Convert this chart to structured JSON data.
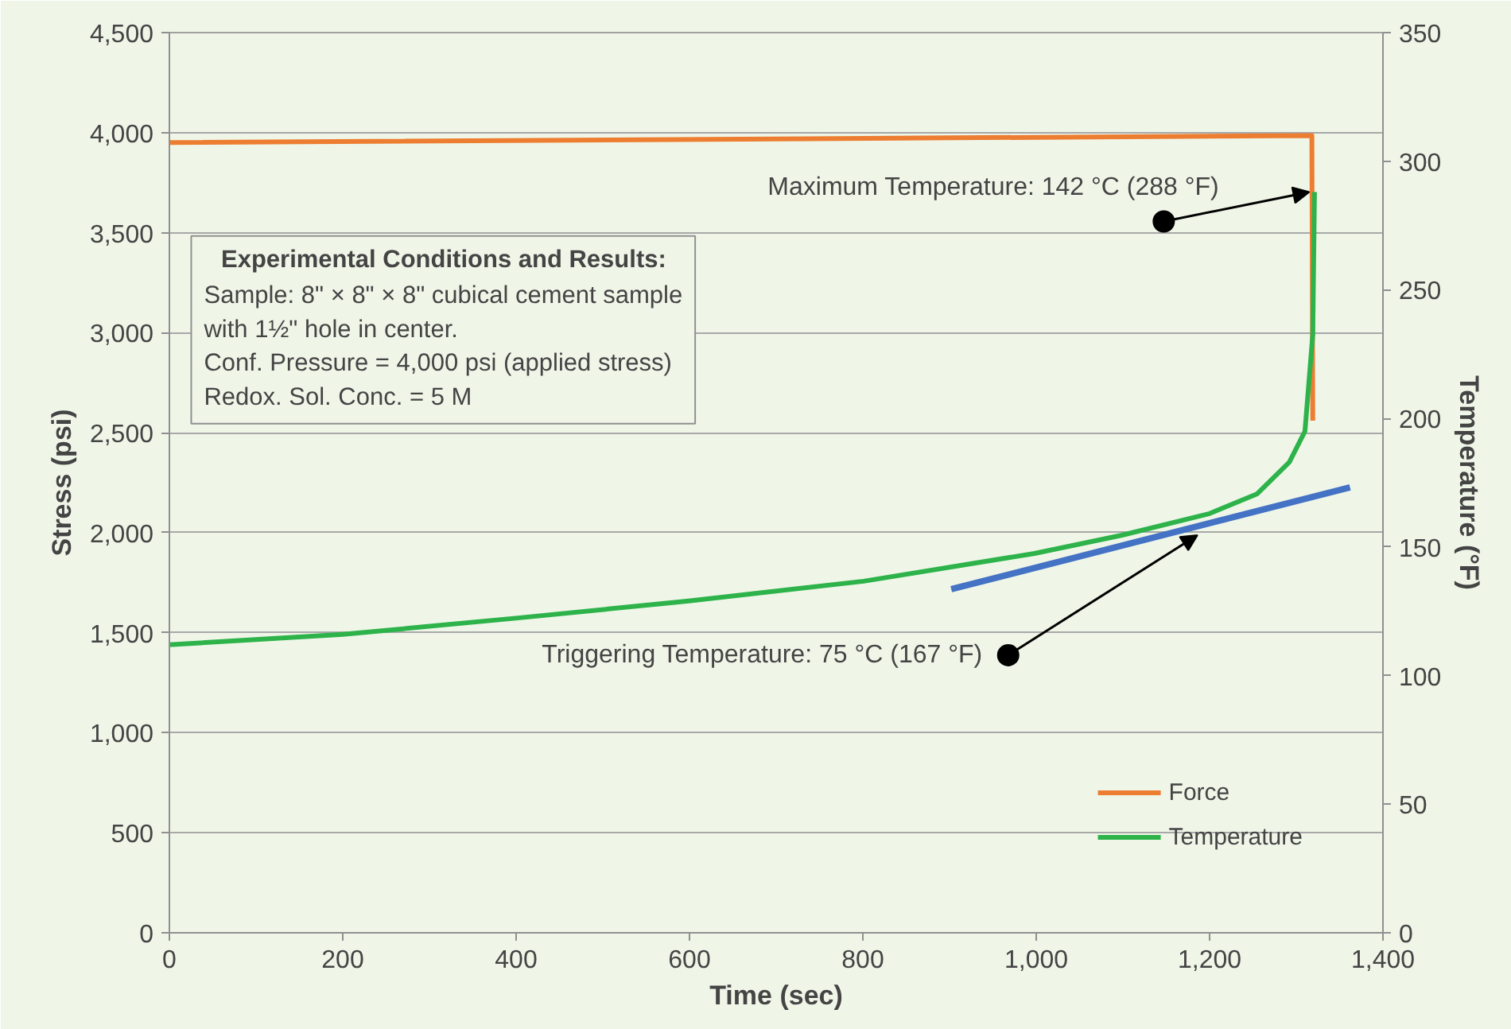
{
  "chart_data": {
    "type": "line",
    "xlabel": "Time (sec)",
    "ylabel": "Stress (psi)",
    "y2label": "Temperature (°F)",
    "xlim": [
      0,
      1400
    ],
    "xticks": [
      0,
      200,
      400,
      600,
      800,
      {
        "value": 1000,
        "label": "1,000"
      },
      {
        "value": 1200,
        "label": "1,200"
      },
      {
        "value": 1400,
        "label": "1,400"
      }
    ],
    "ylim": [
      0,
      4500
    ],
    "yticks": [
      0,
      500,
      {
        "value": 1000,
        "label": "1,000"
      },
      {
        "value": 1500,
        "label": "1,500"
      },
      {
        "value": 2000,
        "label": "2,000"
      },
      {
        "value": 2500,
        "label": "2,500"
      },
      {
        "value": 3000,
        "label": "3,000"
      },
      {
        "value": 3500,
        "label": "3,500"
      },
      {
        "value": 4000,
        "label": "4,000"
      },
      {
        "value": 4500,
        "label": "4,500"
      }
    ],
    "y2lim": [
      0,
      350
    ],
    "y2ticks": [
      0,
      50,
      100,
      150,
      200,
      250,
      300,
      350
    ],
    "grid": "y",
    "legend": "bottom right",
    "series": [
      {
        "name": "Force",
        "color": "#ed7d31",
        "x": [
          0,
          1318,
          1319
        ],
        "values": [
          3950,
          3985,
          2560
        ]
      },
      {
        "name": "Temperature",
        "color": "#2db34a",
        "axis": "y2",
        "x": [
          0,
          200,
          402,
          599,
          801,
          998,
          1099,
          1200,
          1255,
          1292,
          1310,
          1319,
          1321
        ],
        "values": [
          112,
          116,
          122.4,
          129,
          136.7,
          147.5,
          154.6,
          163,
          170.7,
          183,
          195,
          232.5,
          288
        ]
      },
      {
        "color": "#4472c4",
        "axis": "y2",
        "x": [
          902,
          1362
        ],
        "values": [
          133.6,
          173.2
        ]
      }
    ],
    "annotations": [
      "Experimental Conditions and Results:",
      "Sample: 8\" × 8\" × 8\" cubical cement sample",
      "with 1½\" hole in center.",
      "Conf. Pressure = 4,000 psi (applied stress)",
      "Redox. Sol. Conc. = 5 M",
      {
        "text": "Maximum Temperature: 142 °C (288 °F)",
        "x": 1315,
        "y": 3703
      },
      {
        "text": "Triggering Temperature: 75 °C (167 °F)",
        "x": 1186,
        "y": 1988
      }
    ]
  }
}
